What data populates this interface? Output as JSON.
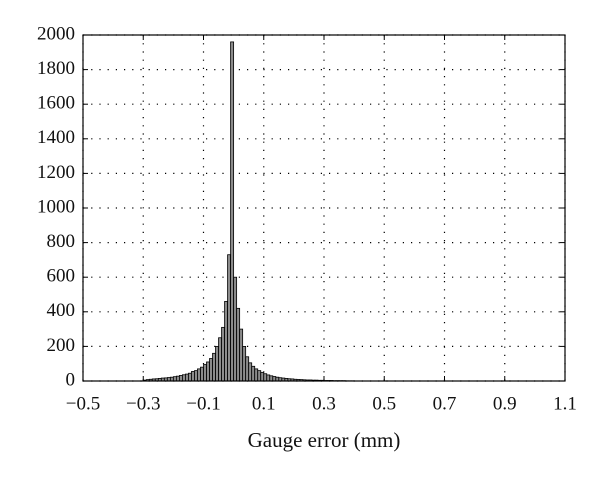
{
  "chart_data": {
    "type": "histogram",
    "xlabel": "Gauge error (mm)",
    "bins": [
      -0.3,
      -0.29,
      -0.28,
      -0.27,
      -0.26,
      -0.25,
      -0.24,
      -0.23,
      -0.22,
      -0.21,
      -0.2,
      -0.19,
      -0.18,
      -0.17,
      -0.16,
      -0.15,
      -0.14,
      -0.13,
      -0.12,
      -0.11,
      -0.1,
      -0.09,
      -0.08,
      -0.07,
      -0.06,
      -0.05,
      -0.04,
      -0.03,
      -0.02,
      -0.01,
      0,
      0.01,
      0.02,
      0.03,
      0.04,
      0.05,
      0.06,
      0.07,
      0.08,
      0.09,
      0.1,
      0.11,
      0.12,
      0.13,
      0.14,
      0.15,
      0.16,
      0.17,
      0.18,
      0.19,
      0.2,
      0.21,
      0.22,
      0.23,
      0.24,
      0.25,
      0.26,
      0.27,
      0.28,
      0.29,
      0.3,
      0.31,
      0.32,
      0.33,
      0.34,
      0.35,
      0.36,
      0.37,
      0.38,
      0.39,
      0.4
    ],
    "values": [
      5,
      8,
      10,
      12,
      13,
      15,
      17,
      18,
      20,
      22,
      25,
      28,
      32,
      36,
      40,
      45,
      55,
      60,
      70,
      80,
      95,
      110,
      130,
      160,
      200,
      250,
      310,
      460,
      730,
      1960,
      600,
      420,
      300,
      200,
      140,
      105,
      85,
      70,
      60,
      50,
      42,
      35,
      30,
      26,
      22,
      19,
      17,
      15,
      13,
      12,
      10,
      9,
      8,
      7,
      6,
      6,
      5,
      5,
      4,
      4,
      3,
      3,
      3,
      2,
      2,
      2,
      2,
      1,
      1,
      1
    ],
    "color": "#8c8c8c",
    "xlim": [
      -0.5,
      1.1
    ],
    "xticks": [
      {
        "value": -0.5,
        "label": "−0.5"
      },
      {
        "value": -0.3,
        "label": "−0.3"
      },
      {
        "value": -0.1,
        "label": "−0.1"
      },
      0.1,
      0.3,
      0.5,
      0.7,
      0.9,
      1.1
    ],
    "ylim": [
      0,
      2000
    ],
    "yticks": [
      0,
      200,
      400,
      600,
      800,
      1000,
      1200,
      1400,
      1600,
      1800,
      2000
    ],
    "grid": true
  }
}
